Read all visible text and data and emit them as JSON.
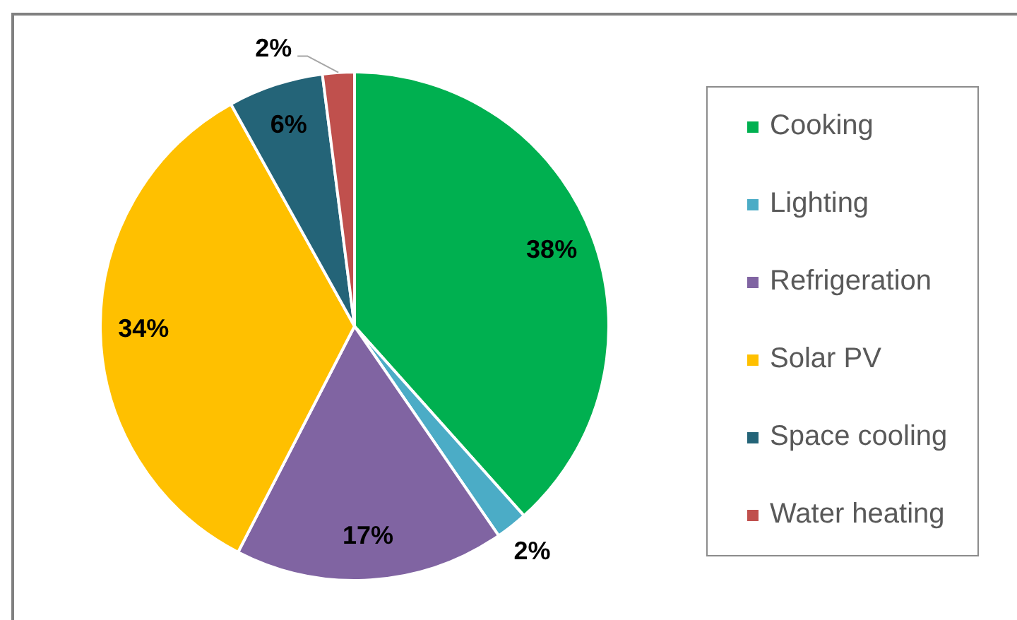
{
  "chart_data": {
    "type": "pie",
    "categories": [
      "Cooking",
      "Lighting",
      "Refrigeration",
      "Solar PV",
      "Space cooling",
      "Water heating"
    ],
    "values": [
      38,
      2,
      17,
      34,
      6,
      2
    ],
    "colors": [
      "#00b050",
      "#4bacc6",
      "#8064a2",
      "#ffc000",
      "#246478",
      "#c0504d"
    ],
    "value_labels": [
      "38%",
      "2%",
      "17%",
      "34%",
      "6%",
      "2%"
    ],
    "legend": "right"
  }
}
